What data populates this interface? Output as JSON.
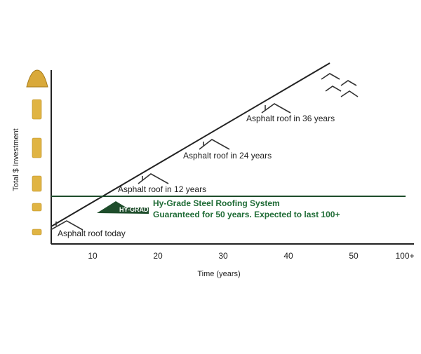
{
  "y_axis_label": "Total $ Investment",
  "x_axis_label": "Time (years)",
  "x_tick_labels": [
    "10",
    "20",
    "30",
    "40",
    "50",
    "100+"
  ],
  "annotations": [
    "Asphalt roof today",
    "Asphalt roof in 12 years",
    "Asphalt roof in 24 years",
    "Asphalt roof in 36 years"
  ],
  "hy_grade": {
    "logo": "HY-GRADE",
    "line1": "Hy-Grade Steel Roofing System",
    "line2": "Guaranteed for 50 years. Expected to last 100+"
  }
}
